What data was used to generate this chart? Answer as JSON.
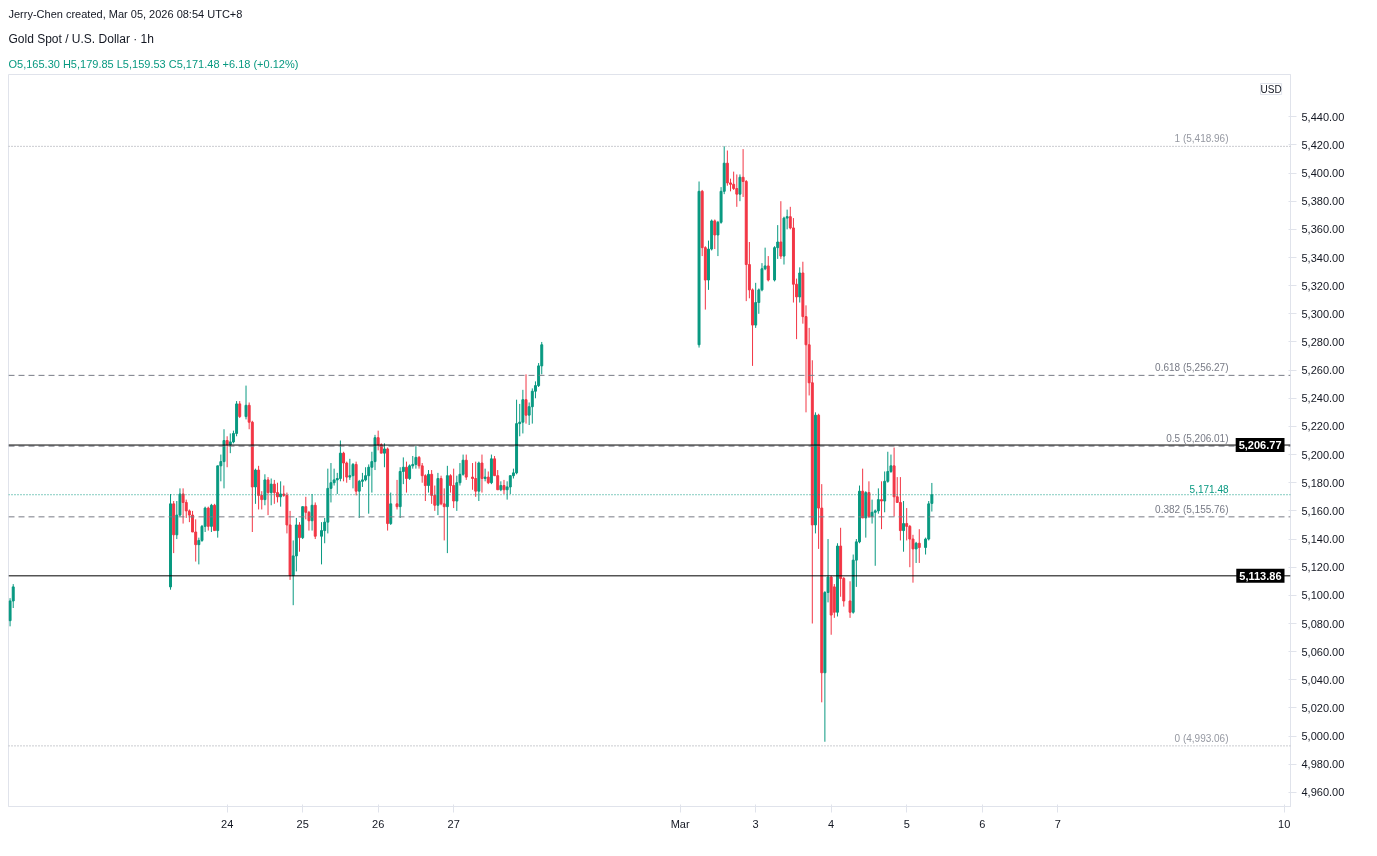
{
  "chart_data": {
    "type": "candlestick",
    "title": "Gold Spot / U.S. Dollar · 1h",
    "subtitle": "O5,165.30 H5,179.85 L5,159.53 C5,171.48 +6.18 (+0.12%)",
    "ylabel": "USD",
    "annotations": [
      "Jerry-Chen created, Mar 05, 2026 08:54 UTC+8"
    ],
    "x": [
      "2026-02-21T03:00",
      "2026-02-21T04:00",
      "2026-02-23T06:00",
      "2026-02-23T07:00",
      "2026-02-23T08:00",
      "2026-02-23T09:00",
      "2026-02-23T10:00",
      "2026-02-23T11:00",
      "2026-02-23T12:00",
      "2026-02-23T13:00",
      "2026-02-23T14:00",
      "2026-02-23T15:00",
      "2026-02-23T16:00",
      "2026-02-23T17:00",
      "2026-02-23T18:00",
      "2026-02-23T19:00",
      "2026-02-23T20:00",
      "2026-02-23T21:00",
      "2026-02-23T22:00",
      "2026-02-23T23:00",
      "2026-02-24T00:00",
      "2026-02-24T01:00",
      "2026-02-24T02:00",
      "2026-02-24T03:00",
      "2026-02-24T04:00",
      "2026-02-24T06:00",
      "2026-02-24T07:00",
      "2026-02-24T08:00",
      "2026-02-24T09:00",
      "2026-02-24T10:00",
      "2026-02-24T11:00",
      "2026-02-24T12:00",
      "2026-02-24T13:00",
      "2026-02-24T14:00",
      "2026-02-24T15:00",
      "2026-02-24T16:00",
      "2026-02-24T17:00",
      "2026-02-24T18:00",
      "2026-02-24T19:00",
      "2026-02-24T20:00",
      "2026-02-24T21:00",
      "2026-02-24T22:00",
      "2026-02-24T23:00",
      "2026-02-25T00:00",
      "2026-02-25T01:00",
      "2026-02-25T02:00",
      "2026-02-25T03:00",
      "2026-02-25T04:00",
      "2026-02-25T06:00",
      "2026-02-25T07:00",
      "2026-02-25T08:00",
      "2026-02-25T09:00",
      "2026-02-25T10:00",
      "2026-02-25T11:00",
      "2026-02-25T12:00",
      "2026-02-25T13:00",
      "2026-02-25T14:00",
      "2026-02-25T15:00",
      "2026-02-25T16:00",
      "2026-02-25T17:00",
      "2026-02-25T18:00",
      "2026-02-25T19:00",
      "2026-02-25T20:00",
      "2026-02-25T21:00",
      "2026-02-25T22:00",
      "2026-02-25T23:00",
      "2026-02-26T00:00",
      "2026-02-26T01:00",
      "2026-02-26T02:00",
      "2026-02-26T03:00",
      "2026-02-26T04:00",
      "2026-02-26T06:00",
      "2026-02-26T07:00",
      "2026-02-26T08:00",
      "2026-02-26T09:00",
      "2026-02-26T10:00",
      "2026-02-26T11:00",
      "2026-02-26T12:00",
      "2026-02-26T13:00",
      "2026-02-26T14:00",
      "2026-02-26T15:00",
      "2026-02-26T16:00",
      "2026-02-26T17:00",
      "2026-02-26T18:00",
      "2026-02-26T19:00",
      "2026-02-26T20:00",
      "2026-02-26T21:00",
      "2026-02-26T22:00",
      "2026-02-26T23:00",
      "2026-02-27T00:00",
      "2026-02-27T01:00",
      "2026-02-27T02:00",
      "2026-02-27T03:00",
      "2026-02-27T04:00",
      "2026-02-27T06:00",
      "2026-02-27T07:00",
      "2026-02-27T08:00",
      "2026-02-27T09:00",
      "2026-02-27T10:00",
      "2026-02-27T11:00",
      "2026-02-27T12:00",
      "2026-02-27T13:00",
      "2026-02-27T14:00",
      "2026-02-27T15:00",
      "2026-02-27T16:00",
      "2026-02-27T17:00",
      "2026-02-27T18:00",
      "2026-02-27T19:00",
      "2026-02-27T20:00",
      "2026-02-27T21:00",
      "2026-02-27T22:00",
      "2026-02-27T23:00",
      "2026-02-28T00:00",
      "2026-02-28T01:00",
      "2026-02-28T02:00",
      "2026-02-28T03:00",
      "2026-02-28T04:00",
      "2026-03-02T06:00",
      "2026-03-02T07:00",
      "2026-03-02T08:00",
      "2026-03-02T09:00",
      "2026-03-02T10:00",
      "2026-03-02T11:00",
      "2026-03-02T12:00",
      "2026-03-02T13:00",
      "2026-03-02T14:00",
      "2026-03-02T15:00",
      "2026-03-02T16:00",
      "2026-03-02T17:00",
      "2026-03-02T18:00",
      "2026-03-02T19:00",
      "2026-03-02T20:00",
      "2026-03-02T21:00",
      "2026-03-02T22:00",
      "2026-03-02T23:00",
      "2026-03-03T00:00",
      "2026-03-03T01:00",
      "2026-03-03T02:00",
      "2026-03-03T03:00",
      "2026-03-03T04:00",
      "2026-03-03T06:00",
      "2026-03-03T07:00",
      "2026-03-03T08:00",
      "2026-03-03T09:00",
      "2026-03-03T10:00",
      "2026-03-03T11:00",
      "2026-03-03T12:00",
      "2026-03-03T13:00",
      "2026-03-03T14:00",
      "2026-03-03T15:00",
      "2026-03-03T16:00",
      "2026-03-03T17:00",
      "2026-03-03T18:00",
      "2026-03-03T19:00",
      "2026-03-03T20:00",
      "2026-03-03T21:00",
      "2026-03-03T22:00",
      "2026-03-03T23:00",
      "2026-03-04T00:00",
      "2026-03-04T01:00",
      "2026-03-04T02:00",
      "2026-03-04T03:00",
      "2026-03-04T04:00",
      "2026-03-04T06:00",
      "2026-03-04T07:00",
      "2026-03-04T08:00",
      "2026-03-04T09:00",
      "2026-03-04T10:00",
      "2026-03-04T11:00",
      "2026-03-04T12:00",
      "2026-03-04T13:00",
      "2026-03-04T14:00",
      "2026-03-04T15:00",
      "2026-03-04T16:00",
      "2026-03-04T17:00",
      "2026-03-04T18:00",
      "2026-03-04T19:00",
      "2026-03-04T20:00",
      "2026-03-04T21:00",
      "2026-03-04T22:00",
      "2026-03-04T23:00",
      "2026-03-05T00:00",
      "2026-03-05T01:00",
      "2026-03-05T02:00",
      "2026-03-05T03:00",
      "2026-03-05T04:00",
      "2026-03-05T06:00",
      "2026-03-05T07:00",
      "2026-03-05T08:00"
    ],
    "ohlc": [
      [
        5082,
        5098,
        5078,
        5096
      ],
      [
        5096,
        5108,
        5091,
        5106
      ],
      [
        5106,
        5172,
        5104,
        5165
      ],
      [
        5165,
        5167,
        5130,
        5143
      ],
      [
        5143,
        5167,
        5140,
        5157
      ],
      [
        5157,
        5176,
        5156,
        5172
      ],
      [
        5172,
        5176,
        5151,
        5166
      ],
      [
        5166,
        5168,
        5155,
        5160
      ],
      [
        5160,
        5161,
        5152,
        5157
      ],
      [
        5157,
        5160,
        5145,
        5145
      ],
      [
        5145,
        5154,
        5124,
        5136
      ],
      [
        5136,
        5141,
        5122,
        5139
      ],
      [
        5139,
        5150,
        5138,
        5149
      ],
      [
        5149,
        5163,
        5145,
        5162
      ],
      [
        5162,
        5163,
        5146,
        5149
      ],
      [
        5149,
        5165,
        5145,
        5164
      ],
      [
        5164,
        5165,
        5146,
        5146
      ],
      [
        5146,
        5192,
        5141,
        5192
      ],
      [
        5192,
        5200,
        5181,
        5195
      ],
      [
        5195,
        5218,
        5176,
        5210
      ],
      [
        5210,
        5213,
        5191,
        5207
      ],
      [
        5207,
        5215,
        5201,
        5209
      ],
      [
        5209,
        5217,
        5208,
        5215
      ],
      [
        5215,
        5238,
        5213,
        5236
      ],
      [
        5236,
        5238,
        5226,
        5227
      ],
      [
        5227,
        5249,
        5225,
        5235
      ],
      [
        5235,
        5237,
        5218,
        5223
      ],
      [
        5223,
        5224,
        5145,
        5177
      ],
      [
        5177,
        5190,
        5165,
        5189
      ],
      [
        5189,
        5192,
        5161,
        5171
      ],
      [
        5171,
        5174,
        5161,
        5168
      ],
      [
        5168,
        5186,
        5164,
        5182
      ],
      [
        5182,
        5184,
        5157,
        5173
      ],
      [
        5173,
        5183,
        5164,
        5179
      ],
      [
        5179,
        5182,
        5165,
        5173
      ],
      [
        5173,
        5180,
        5166,
        5170
      ],
      [
        5170,
        5181,
        5163,
        5172
      ],
      [
        5172,
        5178,
        5170,
        5171
      ],
      [
        5171,
        5173,
        5144,
        5150
      ],
      [
        5150,
        5160,
        5111,
        5114
      ],
      [
        5114,
        5139,
        5093,
        5128
      ],
      [
        5128,
        5155,
        5117,
        5150
      ],
      [
        5150,
        5152,
        5131,
        5141
      ],
      [
        5141,
        5163,
        5140,
        5163
      ],
      [
        5163,
        5170,
        5154,
        5159
      ],
      [
        5159,
        5160,
        5146,
        5153
      ],
      [
        5153,
        5172,
        5146,
        5164
      ],
      [
        5164,
        5166,
        5140,
        5142
      ],
      [
        5142,
        5152,
        5122,
        5146
      ],
      [
        5146,
        5155,
        5137,
        5152
      ],
      [
        5152,
        5190,
        5144,
        5176
      ],
      [
        5176,
        5194,
        5166,
        5180
      ],
      [
        5180,
        5190,
        5178,
        5182
      ],
      [
        5182,
        5187,
        5172,
        5183
      ],
      [
        5183,
        5210,
        5181,
        5201
      ],
      [
        5201,
        5202,
        5181,
        5194
      ],
      [
        5194,
        5195,
        5180,
        5184
      ],
      [
        5184,
        5197,
        5182,
        5185
      ],
      [
        5185,
        5194,
        5176,
        5193
      ],
      [
        5193,
        5195,
        5171,
        5174
      ],
      [
        5174,
        5182,
        5155,
        5181
      ],
      [
        5181,
        5187,
        5177,
        5182
      ],
      [
        5182,
        5191,
        5181,
        5185
      ],
      [
        5185,
        5193,
        5158,
        5191
      ],
      [
        5191,
        5202,
        5173,
        5195
      ],
      [
        5195,
        5214,
        5189,
        5212
      ],
      [
        5212,
        5217,
        5203,
        5207
      ],
      [
        5207,
        5208,
        5201,
        5201
      ],
      [
        5201,
        5208,
        5191,
        5204
      ],
      [
        5204,
        5205,
        5146,
        5151
      ],
      [
        5151,
        5173,
        5150,
        5165
      ],
      [
        5165,
        5182,
        5161,
        5163
      ],
      [
        5163,
        5191,
        5155,
        5188
      ],
      [
        5188,
        5198,
        5179,
        5191
      ],
      [
        5191,
        5195,
        5173,
        5183
      ],
      [
        5183,
        5193,
        5182,
        5192
      ],
      [
        5192,
        5199,
        5190,
        5193
      ],
      [
        5193,
        5206,
        5190,
        5198
      ],
      [
        5198,
        5199,
        5190,
        5192
      ],
      [
        5192,
        5194,
        5180,
        5185
      ],
      [
        5185,
        5186,
        5167,
        5178
      ],
      [
        5178,
        5189,
        5173,
        5186
      ],
      [
        5186,
        5189,
        5165,
        5171
      ],
      [
        5171,
        5178,
        5160,
        5164
      ],
      [
        5164,
        5187,
        5157,
        5183
      ],
      [
        5183,
        5185,
        5164,
        5165
      ],
      [
        5165,
        5176,
        5139,
        5163
      ],
      [
        5163,
        5192,
        5130,
        5185
      ],
      [
        5185,
        5186,
        5173,
        5178
      ],
      [
        5178,
        5190,
        5162,
        5167
      ],
      [
        5167,
        5185,
        5160,
        5180
      ],
      [
        5180,
        5194,
        5178,
        5186
      ],
      [
        5186,
        5200,
        5185,
        5196
      ],
      [
        5196,
        5200,
        5182,
        5184
      ],
      [
        5184,
        5194,
        5175,
        5183
      ],
      [
        5183,
        5195,
        5170,
        5174
      ],
      [
        5174,
        5195,
        5167,
        5194
      ],
      [
        5194,
        5200,
        5173,
        5183
      ],
      [
        5183,
        5190,
        5181,
        5184
      ],
      [
        5184,
        5188,
        5179,
        5180
      ],
      [
        5180,
        5200,
        5179,
        5197
      ],
      [
        5197,
        5199,
        5185,
        5185
      ],
      [
        5185,
        5189,
        5175,
        5175
      ],
      [
        5175,
        5181,
        5174,
        5178
      ],
      [
        5178,
        5182,
        5172,
        5175
      ],
      [
        5175,
        5181,
        5168,
        5177
      ],
      [
        5177,
        5185,
        5172,
        5185
      ],
      [
        5185,
        5190,
        5183,
        5187
      ],
      [
        5187,
        5239,
        5186,
        5222
      ],
      [
        5222,
        5236,
        5213,
        5223
      ],
      [
        5223,
        5246,
        5215,
        5239
      ],
      [
        5239,
        5257,
        5222,
        5228
      ],
      [
        5228,
        5237,
        5221,
        5234
      ],
      [
        5234,
        5247,
        5222,
        5245
      ],
      [
        5245,
        5252,
        5240,
        5249
      ],
      [
        5249,
        5265,
        5248,
        5263
      ],
      [
        5263,
        5280,
        5257,
        5278
      ],
      [
        5278,
        5394,
        5276,
        5387
      ],
      [
        5387,
        5388,
        5341,
        5347
      ],
      [
        5347,
        5348,
        5303,
        5324
      ],
      [
        5324,
        5352,
        5317,
        5346
      ],
      [
        5346,
        5367,
        5345,
        5366
      ],
      [
        5366,
        5367,
        5346,
        5356
      ],
      [
        5356,
        5366,
        5341,
        5365
      ],
      [
        5365,
        5390,
        5364,
        5387
      ],
      [
        5387,
        5419,
        5385,
        5407
      ],
      [
        5407,
        5416,
        5391,
        5393
      ],
      [
        5393,
        5396,
        5387,
        5392
      ],
      [
        5392,
        5401,
        5388,
        5389
      ],
      [
        5389,
        5399,
        5376,
        5385
      ],
      [
        5385,
        5399,
        5380,
        5397
      ],
      [
        5397,
        5417,
        5383,
        5394
      ],
      [
        5394,
        5395,
        5309,
        5335
      ],
      [
        5335,
        5351,
        5311,
        5317
      ],
      [
        5317,
        5318,
        5263,
        5292
      ],
      [
        5292,
        5322,
        5290,
        5308
      ],
      [
        5308,
        5318,
        5300,
        5317
      ],
      [
        5317,
        5336,
        5316,
        5332
      ],
      [
        5332,
        5347,
        5331,
        5334
      ],
      [
        5334,
        5341,
        5323,
        5324
      ],
      [
        5324,
        5348,
        5323,
        5347
      ],
      [
        5347,
        5363,
        5339,
        5351
      ],
      [
        5351,
        5380,
        5339,
        5341
      ],
      [
        5341,
        5369,
        5335,
        5368
      ],
      [
        5368,
        5374,
        5360,
        5369
      ],
      [
        5369,
        5376,
        5360,
        5361
      ],
      [
        5361,
        5368,
        5308,
        5321
      ],
      [
        5321,
        5325,
        5282,
        5312
      ],
      [
        5312,
        5333,
        5308,
        5329
      ],
      [
        5329,
        5337,
        5293,
        5298
      ],
      [
        5298,
        5306,
        5230,
        5278
      ],
      [
        5278,
        5290,
        5242,
        5251
      ],
      [
        5251,
        5267,
        5080,
        5150
      ],
      [
        5150,
        5230,
        5144,
        5228
      ],
      [
        5228,
        5229,
        5133,
        5162
      ],
      [
        5162,
        5179,
        5024,
        5045
      ],
      [
        5045,
        5103,
        4996,
        5102
      ],
      [
        5102,
        5140,
        5095,
        5113
      ],
      [
        5113,
        5114,
        5072,
        5086
      ],
      [
        5106,
        5108,
        5084,
        5088
      ],
      [
        5088,
        5137,
        5085,
        5135
      ],
      [
        5135,
        5148,
        5099,
        5112
      ],
      [
        5112,
        5113,
        5092,
        5096
      ],
      [
        5096,
        5110,
        5084,
        5088
      ],
      [
        5088,
        5129,
        5087,
        5125
      ],
      [
        5125,
        5140,
        5106,
        5138
      ],
      [
        5138,
        5178,
        5137,
        5174
      ],
      [
        5174,
        5190,
        5155,
        5155
      ],
      [
        5155,
        5174,
        5141,
        5173
      ],
      [
        5173,
        5181,
        5155,
        5156
      ],
      [
        5156,
        5168,
        5151,
        5159
      ],
      [
        5159,
        5161,
        5121,
        5160
      ],
      [
        5160,
        5176,
        5158,
        5168
      ],
      [
        5168,
        5181,
        5147,
        5167
      ],
      [
        5167,
        5188,
        5159,
        5181
      ],
      [
        5181,
        5202,
        5180,
        5188
      ],
      [
        5188,
        5200,
        5187,
        5192
      ],
      [
        5192,
        5205,
        5156,
        5170
      ],
      [
        5170,
        5184,
        5166,
        5166
      ],
      [
        5166,
        5184,
        5139,
        5146
      ],
      [
        5146,
        5167,
        5131,
        5151
      ],
      [
        5151,
        5162,
        5139,
        5149
      ],
      [
        5149,
        5150,
        5120,
        5140
      ],
      [
        5140,
        5143,
        5109,
        5133
      ],
      [
        5133,
        5138,
        5123,
        5137
      ],
      [
        5137,
        5147,
        5123,
        5134
      ],
      [
        5134,
        5141,
        5129,
        5140
      ],
      [
        5140,
        5167,
        5139,
        5165
      ],
      [
        5165.3,
        5179.85,
        5159.53,
        5171.48
      ]
    ],
    "xlim": [
      "2026-02-21T02:30",
      "2026-03-10T02:00"
    ],
    "xticks": [
      {
        "value": "2026-02-24",
        "label": "24"
      },
      {
        "value": "2026-02-25",
        "label": "25"
      },
      {
        "value": "2026-02-26",
        "label": "26"
      },
      {
        "value": "2026-02-27",
        "label": "27"
      },
      {
        "value": "2026-03-02",
        "label": "Mar"
      },
      {
        "value": "2026-03-03",
        "label": "3"
      },
      {
        "value": "2026-03-04",
        "label": "4"
      },
      {
        "value": "2026-03-05",
        "label": "5"
      },
      {
        "value": "2026-03-06",
        "label": "6"
      },
      {
        "value": "2026-03-07",
        "label": "7"
      },
      {
        "value": "2026-03-10",
        "label": "10"
      }
    ],
    "ylim": [
      4950,
      5470
    ],
    "yticks": [
      {
        "value": 4960,
        "label": "4,960.00"
      },
      {
        "value": 4980,
        "label": "4,980.00"
      },
      {
        "value": 5000,
        "label": "5,000.00"
      },
      {
        "value": 5020,
        "label": "5,020.00"
      },
      {
        "value": 5040,
        "label": "5,040.00"
      },
      {
        "value": 5060,
        "label": "5,060.00"
      },
      {
        "value": 5080,
        "label": "5,080.00"
      },
      {
        "value": 5100,
        "label": "5,100.00"
      },
      {
        "value": 5120,
        "label": "5,120.00"
      },
      {
        "value": 5140,
        "label": "5,140.00"
      },
      {
        "value": 5160,
        "label": "5,160.00"
      },
      {
        "value": 5180,
        "label": "5,180.00"
      },
      {
        "value": 5200,
        "label": "5,200.00"
      },
      {
        "value": 5220,
        "label": "5,220.00"
      },
      {
        "value": 5240,
        "label": "5,240.00"
      },
      {
        "value": 5260,
        "label": "5,260.00"
      },
      {
        "value": 5280,
        "label": "5,280.00"
      },
      {
        "value": 5300,
        "label": "5,300.00"
      },
      {
        "value": 5320,
        "label": "5,320.00"
      },
      {
        "value": 5340,
        "label": "5,340.00"
      },
      {
        "value": 5360,
        "label": "5,360.00"
      },
      {
        "value": 5380,
        "label": "5,380.00"
      },
      {
        "value": 5400,
        "label": "5,400.00"
      },
      {
        "value": 5420,
        "label": "5,420.00"
      },
      {
        "value": 5440,
        "label": "5,440.00"
      }
    ],
    "ref_lines": [
      {
        "axis": "y",
        "value": 5418.96,
        "label": "1 (5,418.96)",
        "color": "#9598a1",
        "line_style": "dotted"
      },
      {
        "axis": "y",
        "value": 5256.27,
        "label": "0.618 (5,256.27)",
        "color": "#787b86",
        "line_style": "dashed"
      },
      {
        "axis": "y",
        "value": 5206.01,
        "label": "0.5 (5,206.01)",
        "color": "#787b86",
        "line_style": "dashed"
      },
      {
        "axis": "y",
        "value": 5155.76,
        "label": "0.382 (5,155.76)",
        "color": "#787b86",
        "line_style": "dashed"
      },
      {
        "axis": "y",
        "value": 4993.06,
        "label": "0 (4,993.06)",
        "color": "#9598a1",
        "line_style": "dotted"
      },
      {
        "axis": "y",
        "value": 5206.77,
        "label": "5,206.77",
        "color": "#000000",
        "line_style": "solid"
      },
      {
        "axis": "y",
        "value": 5113.86,
        "label": "5,113.86",
        "color": "#000000",
        "line_style": "solid"
      },
      {
        "axis": "y",
        "value": 5171.48,
        "label": "5,171.48",
        "color": "#089981",
        "line_style": "dotted"
      }
    ],
    "grid": false
  }
}
